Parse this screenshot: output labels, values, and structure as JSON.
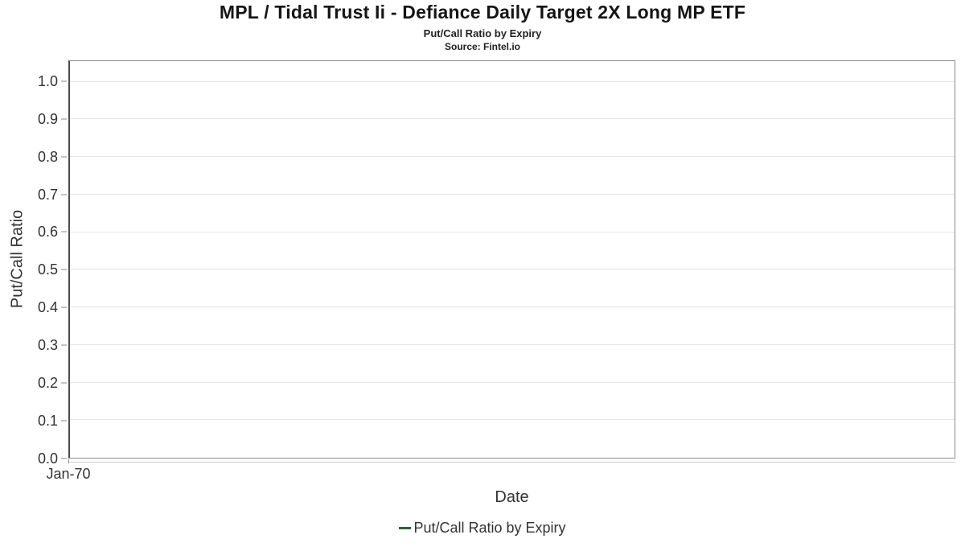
{
  "header": {
    "title": "MPL / Tidal Trust Ii - Defiance Daily Target 2X Long MP ETF",
    "subtitle": "Put/Call Ratio by Expiry",
    "source": "Source: Fintel.io"
  },
  "colors": {
    "series_green": "#286630",
    "gridline": "#e6e6e6",
    "plot_border": "#8a8a8a",
    "axis_line": "#4d4d4d",
    "text": "#333333"
  },
  "chart_data": {
    "type": "line",
    "title": "MPL / Tidal Trust Ii - Defiance Daily Target 2X Long MP ETF",
    "subtitle": "Put/Call Ratio by Expiry",
    "source": "Source: Fintel.io",
    "xlabel": "Date",
    "ylabel": "Put/Call Ratio",
    "x": [],
    "series": [
      {
        "name": "Put/Call Ratio by Expiry",
        "color": "#286630",
        "values": []
      }
    ],
    "xticks": [
      "Jan-70"
    ],
    "xtick_positions": [
      0
    ],
    "yticks": [
      0.0,
      0.1,
      0.2,
      0.3,
      0.4,
      0.5,
      0.6,
      0.7,
      0.8,
      0.9,
      1.0
    ],
    "ytick_format_decimals": 1,
    "ylim": [
      0,
      1.055
    ],
    "grid": true,
    "legend_position": "bottom",
    "legend": {
      "items": [
        {
          "label": "Put/Call Ratio by Expiry",
          "color": "#286630"
        }
      ]
    }
  }
}
